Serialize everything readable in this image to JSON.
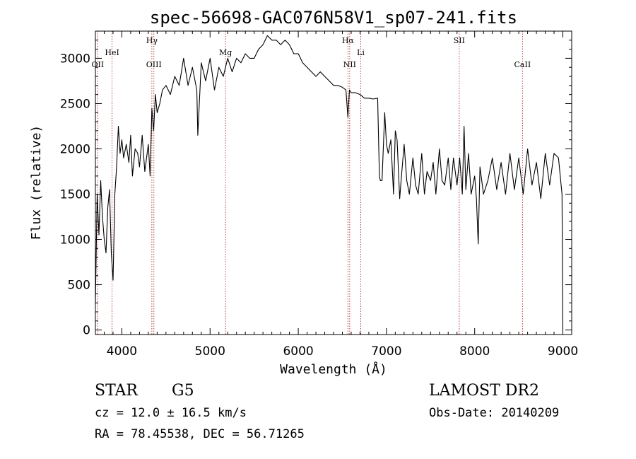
{
  "chart_data": {
    "type": "line",
    "title": "spec-56698-GAC076N58V1_sp07-241.fits",
    "xlabel": "Wavelength (Å)",
    "ylabel": "Flux (relative)",
    "xlim": [
      3700,
      9100
    ],
    "ylim": [
      -50,
      3300
    ],
    "xticks": [
      4000,
      5000,
      6000,
      7000,
      8000,
      9000
    ],
    "yticks": [
      0,
      500,
      1000,
      1500,
      2000,
      2500,
      3000
    ],
    "grid": false,
    "series": [
      {
        "x": [
          3700,
          3720,
          3740,
          3760,
          3780,
          3800,
          3820,
          3840,
          3860,
          3880,
          3900,
          3920,
          3940,
          3960,
          3980,
          4000,
          4020,
          4050,
          4080,
          4100,
          4120,
          4150,
          4180,
          4200,
          4230,
          4260,
          4300,
          4320,
          4340,
          4360,
          4380,
          4400,
          4430,
          4460,
          4500,
          4550,
          4600,
          4650,
          4700,
          4750,
          4800,
          4850,
          4861,
          4900,
          4950,
          5000,
          5050,
          5100,
          5150,
          5200,
          5250,
          5300,
          5350,
          5400,
          5450,
          5500,
          5550,
          5600,
          5650,
          5700,
          5750,
          5800,
          5850,
          5900,
          5950,
          6000,
          6050,
          6100,
          6150,
          6200,
          6250,
          6300,
          6350,
          6400,
          6450,
          6500,
          6540,
          6563,
          6580,
          6600,
          6650,
          6700,
          6750,
          6800,
          6850,
          6900,
          6920,
          6930,
          6950,
          6980,
          7000,
          7020,
          7050,
          7080,
          7100,
          7120,
          7150,
          7170,
          7200,
          7230,
          7260,
          7300,
          7330,
          7360,
          7400,
          7430,
          7460,
          7500,
          7530,
          7560,
          7600,
          7630,
          7660,
          7700,
          7730,
          7760,
          7800,
          7830,
          7860,
          7880,
          7900,
          7930,
          7960,
          8000,
          8020,
          8040,
          8060,
          8100,
          8150,
          8200,
          8250,
          8300,
          8350,
          8400,
          8450,
          8500,
          8550,
          8600,
          8650,
          8700,
          8750,
          8800,
          8850,
          8900,
          8950,
          8990,
          9000
        ],
        "y": [
          300,
          1500,
          1050,
          1650,
          1250,
          1000,
          850,
          1350,
          1550,
          850,
          550,
          1500,
          1800,
          2250,
          1950,
          2100,
          1900,
          2050,
          1850,
          2150,
          1700,
          2000,
          1950,
          1800,
          2150,
          1750,
          2050,
          1700,
          2450,
          2200,
          2600,
          2400,
          2500,
          2650,
          2700,
          2600,
          2800,
          2700,
          3000,
          2700,
          2900,
          2650,
          2150,
          2950,
          2750,
          3000,
          2650,
          2900,
          2800,
          3000,
          2850,
          3000,
          2950,
          3050,
          3000,
          3000,
          3100,
          3150,
          3250,
          3200,
          3200,
          3150,
          3200,
          3150,
          3050,
          3050,
          2950,
          2900,
          2850,
          2800,
          2850,
          2800,
          2750,
          2700,
          2700,
          2680,
          2650,
          2350,
          2650,
          2620,
          2620,
          2600,
          2560,
          2560,
          2550,
          2560,
          1700,
          1650,
          1650,
          2400,
          2050,
          1950,
          2100,
          1500,
          2200,
          2100,
          1450,
          1700,
          2050,
          1650,
          1500,
          1900,
          1600,
          1500,
          1950,
          1500,
          1750,
          1650,
          1850,
          1500,
          2000,
          1650,
          1600,
          1900,
          1550,
          1900,
          1600,
          1900,
          1500,
          2250,
          1550,
          1950,
          1500,
          1700,
          1450,
          950,
          1800,
          1500,
          1650,
          1900,
          1550,
          1850,
          1500,
          1950,
          1550,
          1900,
          1500,
          2000,
          1600,
          1850,
          1450,
          1950,
          1600,
          1950,
          1900,
          1500,
          0
        ]
      }
    ],
    "lines": [
      {
        "wavelength": 3727,
        "label": "OII",
        "label_row": "lower"
      },
      {
        "wavelength": 3889,
        "label": "HeI",
        "label_row": "middle"
      },
      {
        "wavelength": 4340,
        "label": "Hγ",
        "label_row": "upper"
      },
      {
        "wavelength": 4363,
        "label": "OIII",
        "label_row": "lower"
      },
      {
        "wavelength": 5175,
        "label": "Mg",
        "label_row": "middle"
      },
      {
        "wavelength": 6563,
        "label": "Hα",
        "label_row": "upper"
      },
      {
        "wavelength": 6583,
        "label": "NII",
        "label_row": "lower"
      },
      {
        "wavelength": 6708,
        "label": "Li",
        "label_row": "middle"
      },
      {
        "wavelength": 7825,
        "label": "SII",
        "label_row": "upper"
      },
      {
        "wavelength": 8542,
        "label": "CaII",
        "label_row": "lower"
      }
    ]
  },
  "info": {
    "class": "STAR",
    "subclass": "G5",
    "survey": "LAMOST DR2",
    "cz": "cz = 12.0 ± 16.5 km/s",
    "obs_date": "Obs-Date: 20140209",
    "coords": "RA =  78.45538, DEC =  56.71265"
  }
}
